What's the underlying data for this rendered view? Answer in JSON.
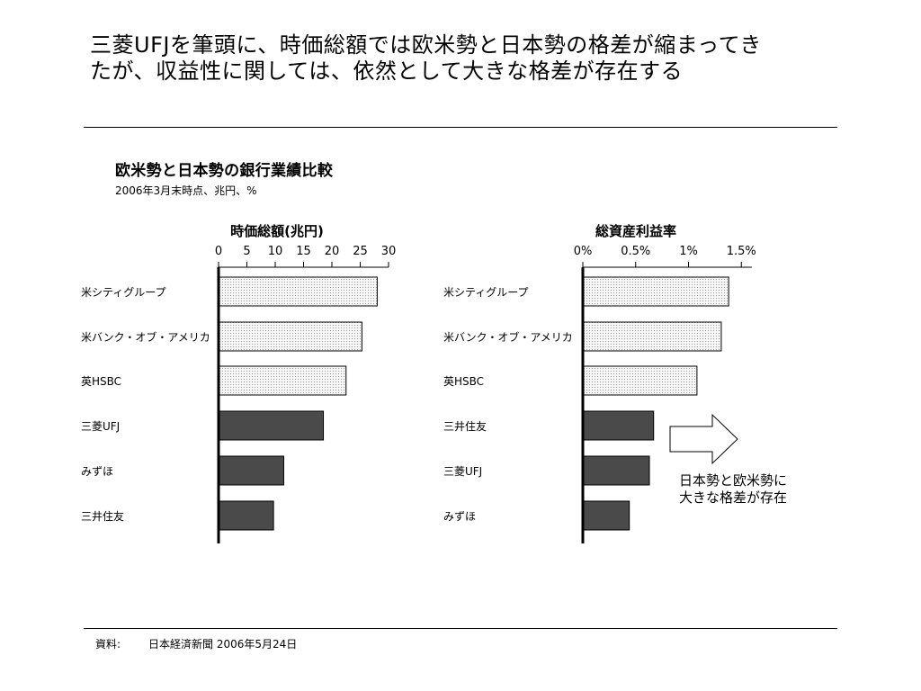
{
  "headline": {
    "line1": "三菱UFJを筆頭に、時価総額では欧米勢と日本勢の格差が縮まってき",
    "line2": "たが、収益性に関しては、依然として大きな格差が存在する"
  },
  "figure": {
    "title": "欧米勢と日本勢の銀行業績比較",
    "subtitle": "2006年3月末時点、兆円、%"
  },
  "source": {
    "label": "資料:",
    "text": "日本経済新聞 2006年5月24日"
  },
  "annotation": {
    "line1": "日本勢と欧米勢に",
    "line2": "大きな格差が存在"
  },
  "colors": {
    "western_fill": "#ececec",
    "japanese_fill": "#4a4a4a",
    "outline": "#000000"
  },
  "chart_data": [
    {
      "type": "bar",
      "orientation": "horizontal",
      "title": "時価総額(兆円)",
      "categories": [
        "米シティグループ",
        "米バンク・オブ・アメリカ",
        "英HSBC",
        "三菱UFJ",
        "みずほ",
        "三井住友"
      ],
      "values": [
        28,
        25.3,
        22.5,
        18.5,
        11.5,
        9.7
      ],
      "groups": [
        "western",
        "western",
        "western",
        "japanese",
        "japanese",
        "japanese"
      ],
      "xlim": [
        0,
        30
      ],
      "ticks": [
        0,
        5,
        10,
        15,
        20,
        25,
        30
      ],
      "tick_labels": [
        "0",
        "5",
        "10",
        "15",
        "20",
        "25",
        "30"
      ],
      "axis_position": "top",
      "grid": false
    },
    {
      "type": "bar",
      "orientation": "horizontal",
      "title": "総資産利益率",
      "categories": [
        "米シティグループ",
        "米バンク・オブ・アメリカ",
        "英HSBC",
        "三井住友",
        "三菱UFJ",
        "みずほ"
      ],
      "values": [
        1.38,
        1.31,
        1.08,
        0.67,
        0.63,
        0.44
      ],
      "groups": [
        "western",
        "western",
        "western",
        "japanese",
        "japanese",
        "japanese"
      ],
      "xlim": [
        0,
        1.6
      ],
      "ticks": [
        0,
        0.5,
        1,
        1.5
      ],
      "tick_labels": [
        "0%",
        "0.5%",
        "1%",
        "1.5%"
      ],
      "axis_position": "top",
      "grid": false
    }
  ]
}
